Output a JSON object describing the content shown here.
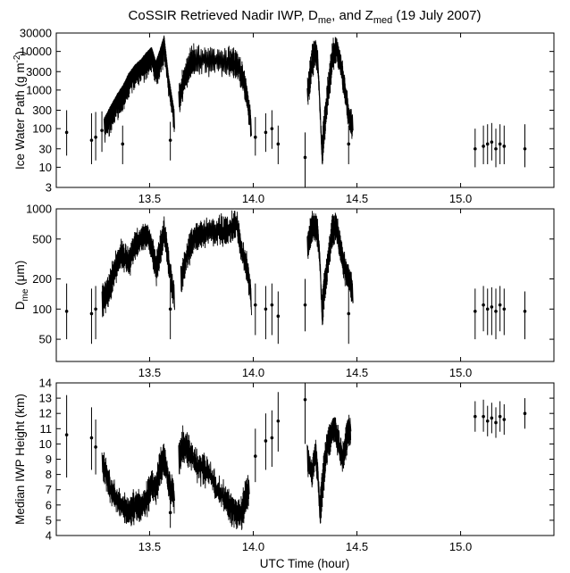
{
  "title": "CoSSIR Retrieved Nadir IWP, D",
  "title_sub1": "me",
  "title_mid": ", and Z",
  "title_sub2": "med",
  "title_end": " (19 July 2007)",
  "xlabel": "UTC Time (hour)",
  "chart_data": [
    {
      "type": "line",
      "name": "iwp",
      "ylabel": "Ice Water Path (g m",
      "ylabel_sup": "-2",
      "ylabel_end": ")",
      "yscale": "log",
      "xlim": [
        13.05,
        15.45
      ],
      "ylim": [
        3,
        30000
      ],
      "xticks": [
        "13.5",
        "14.0",
        "14.5",
        "15.0"
      ],
      "yticks": [
        "3",
        "10",
        "30",
        "100",
        "300",
        "1000",
        "3000",
        "10000",
        "30000"
      ],
      "ytick_values": [
        3,
        10,
        30,
        100,
        300,
        1000,
        3000,
        10000,
        30000
      ],
      "xticks_on": [
        13.5,
        14.0,
        14.5,
        15.0
      ],
      "points": [
        {
          "x": 13.1,
          "y": 80,
          "lo": 20,
          "hi": 300
        },
        {
          "x": 13.22,
          "y": 50,
          "lo": 12,
          "hi": 250
        },
        {
          "x": 13.24,
          "y": 60,
          "lo": 15,
          "hi": 270
        },
        {
          "x": 13.27,
          "y": 90,
          "lo": 25,
          "hi": 280
        },
        {
          "x": 13.37,
          "y": 40,
          "lo": 12,
          "hi": 120
        },
        {
          "x": 13.6,
          "y": 50,
          "lo": 15,
          "hi": 150
        },
        {
          "x": 14.01,
          "y": 60,
          "lo": 20,
          "hi": 200
        },
        {
          "x": 14.06,
          "y": 80,
          "lo": 25,
          "hi": 250
        },
        {
          "x": 14.09,
          "y": 100,
          "lo": 30,
          "hi": 300
        },
        {
          "x": 14.12,
          "y": 40,
          "lo": 12,
          "hi": 120
        },
        {
          "x": 14.25,
          "y": 18,
          "lo": 3,
          "hi": 80
        },
        {
          "x": 14.46,
          "y": 40,
          "lo": 12,
          "hi": 120
        },
        {
          "x": 15.07,
          "y": 30,
          "lo": 10,
          "hi": 100
        },
        {
          "x": 15.11,
          "y": 35,
          "lo": 12,
          "hi": 120
        },
        {
          "x": 15.13,
          "y": 40,
          "lo": 12,
          "hi": 130
        },
        {
          "x": 15.15,
          "y": 45,
          "lo": 15,
          "hi": 140
        },
        {
          "x": 15.17,
          "y": 30,
          "lo": 10,
          "hi": 100
        },
        {
          "x": 15.19,
          "y": 40,
          "lo": 12,
          "hi": 130
        },
        {
          "x": 15.21,
          "y": 35,
          "lo": 12,
          "hi": 120
        },
        {
          "x": 15.31,
          "y": 30,
          "lo": 10,
          "hi": 130
        }
      ],
      "segments": [
        [
          [
            13.28,
            100
          ],
          [
            13.31,
            200
          ],
          [
            13.34,
            400
          ],
          [
            13.37,
            700
          ],
          [
            13.4,
            1500
          ],
          [
            13.43,
            2500
          ],
          [
            13.46,
            3500
          ],
          [
            13.49,
            5500
          ],
          [
            13.51,
            7000
          ],
          [
            13.53,
            3000
          ],
          [
            13.55,
            6000
          ],
          [
            13.57,
            14000
          ],
          [
            13.59,
            1500
          ],
          [
            13.62,
            150
          ]
        ],
        [
          [
            13.64,
            500
          ],
          [
            13.66,
            1500
          ],
          [
            13.68,
            3000
          ],
          [
            13.7,
            5500
          ],
          [
            13.72,
            6000
          ],
          [
            13.8,
            6000
          ],
          [
            13.88,
            5500
          ],
          [
            13.92,
            4500
          ],
          [
            13.95,
            2000
          ],
          [
            13.97,
            600
          ],
          [
            13.99,
            100
          ]
        ],
        [
          [
            14.26,
            700
          ],
          [
            14.28,
            5000
          ],
          [
            14.3,
            10000
          ],
          [
            14.31,
            5000
          ],
          [
            14.32,
            400
          ],
          [
            14.33,
            20
          ],
          [
            14.34,
            100
          ],
          [
            14.36,
            1000
          ],
          [
            14.38,
            7000
          ],
          [
            14.4,
            12000
          ],
          [
            14.42,
            5000
          ],
          [
            14.44,
            1000
          ],
          [
            14.46,
            200
          ],
          [
            14.48,
            120
          ]
        ]
      ]
    },
    {
      "type": "line",
      "name": "dme",
      "ylabel": "D",
      "ylabel_sub": "me",
      "ylabel_end": " (μm)",
      "yscale": "log",
      "xlim": [
        13.05,
        15.45
      ],
      "ylim": [
        30,
        1000
      ],
      "xticks": [
        "13.5",
        "14.0",
        "14.5",
        "15.0"
      ],
      "yticks": [
        "50",
        "100",
        "200",
        "500",
        "1000"
      ],
      "ytick_values": [
        50,
        100,
        200,
        500,
        1000
      ],
      "xticks_on": [
        13.5,
        14.0,
        14.5,
        15.0
      ],
      "points": [
        {
          "x": 13.1,
          "y": 95,
          "lo": 50,
          "hi": 180
        },
        {
          "x": 13.22,
          "y": 90,
          "lo": 45,
          "hi": 160
        },
        {
          "x": 13.24,
          "y": 100,
          "lo": 50,
          "hi": 170
        },
        {
          "x": 13.6,
          "y": 100,
          "lo": 50,
          "hi": 200
        },
        {
          "x": 14.01,
          "y": 110,
          "lo": 55,
          "hi": 180
        },
        {
          "x": 14.06,
          "y": 100,
          "lo": 50,
          "hi": 170
        },
        {
          "x": 14.09,
          "y": 110,
          "lo": 55,
          "hi": 180
        },
        {
          "x": 14.12,
          "y": 85,
          "lo": 45,
          "hi": 150
        },
        {
          "x": 14.25,
          "y": 110,
          "lo": 60,
          "hi": 200
        },
        {
          "x": 14.46,
          "y": 90,
          "lo": 45,
          "hi": 160
        },
        {
          "x": 15.07,
          "y": 95,
          "lo": 50,
          "hi": 160
        },
        {
          "x": 15.11,
          "y": 110,
          "lo": 60,
          "hi": 170
        },
        {
          "x": 15.13,
          "y": 100,
          "lo": 55,
          "hi": 160
        },
        {
          "x": 15.15,
          "y": 105,
          "lo": 55,
          "hi": 165
        },
        {
          "x": 15.17,
          "y": 95,
          "lo": 50,
          "hi": 160
        },
        {
          "x": 15.19,
          "y": 110,
          "lo": 60,
          "hi": 170
        },
        {
          "x": 15.21,
          "y": 100,
          "lo": 55,
          "hi": 160
        },
        {
          "x": 15.31,
          "y": 95,
          "lo": 50,
          "hi": 150
        }
      ],
      "segments": [
        [
          [
            13.27,
            120
          ],
          [
            13.3,
            150
          ],
          [
            13.33,
            250
          ],
          [
            13.36,
            350
          ],
          [
            13.4,
            300
          ],
          [
            13.43,
            450
          ],
          [
            13.46,
            500
          ],
          [
            13.49,
            550
          ],
          [
            13.51,
            400
          ],
          [
            13.53,
            250
          ],
          [
            13.55,
            400
          ],
          [
            13.57,
            600
          ],
          [
            13.59,
            300
          ],
          [
            13.62,
            120
          ]
        ],
        [
          [
            13.65,
            200
          ],
          [
            13.68,
            350
          ],
          [
            13.71,
            500
          ],
          [
            13.75,
            580
          ],
          [
            13.82,
            600
          ],
          [
            13.88,
            620
          ],
          [
            13.92,
            700
          ],
          [
            13.94,
            400
          ],
          [
            13.97,
            250
          ],
          [
            13.99,
            120
          ]
        ],
        [
          [
            14.26,
            400
          ],
          [
            14.28,
            650
          ],
          [
            14.3,
            650
          ],
          [
            14.31,
            550
          ],
          [
            14.32,
            300
          ],
          [
            14.33,
            90
          ],
          [
            14.34,
            150
          ],
          [
            14.36,
            300
          ],
          [
            14.38,
            600
          ],
          [
            14.4,
            650
          ],
          [
            14.42,
            400
          ],
          [
            14.44,
            250
          ],
          [
            14.46,
            200
          ],
          [
            14.48,
            150
          ]
        ]
      ]
    },
    {
      "type": "line",
      "name": "zmed",
      "ylabel": "Median IWP Height (km)",
      "yscale": "linear",
      "xlim": [
        13.05,
        15.45
      ],
      "ylim": [
        4,
        14
      ],
      "xticks": [
        "13.5",
        "14.0",
        "14.5",
        "15.0"
      ],
      "yticks": [
        "4",
        "5",
        "6",
        "7",
        "8",
        "9",
        "10",
        "11",
        "12",
        "13",
        "14"
      ],
      "ytick_values": [
        4,
        5,
        6,
        7,
        8,
        9,
        10,
        11,
        12,
        13,
        14
      ],
      "xticks_on": [
        13.5,
        14.0,
        14.5,
        15.0
      ],
      "points": [
        {
          "x": 13.1,
          "y": 10.6,
          "lo": 7.8,
          "hi": 13.2
        },
        {
          "x": 13.22,
          "y": 10.4,
          "lo": 8.3,
          "hi": 12.4
        },
        {
          "x": 13.24,
          "y": 9.8,
          "lo": 8.0,
          "hi": 11.6
        },
        {
          "x": 13.6,
          "y": 5.5,
          "lo": 4.5,
          "hi": 7.5
        },
        {
          "x": 14.01,
          "y": 9.2,
          "lo": 7.5,
          "hi": 11.0
        },
        {
          "x": 14.06,
          "y": 10.2,
          "lo": 8.3,
          "hi": 12.0
        },
        {
          "x": 14.09,
          "y": 10.4,
          "lo": 8.5,
          "hi": 12.2
        },
        {
          "x": 14.12,
          "y": 11.5,
          "lo": 9.5,
          "hi": 13.4
        },
        {
          "x": 14.25,
          "y": 12.9,
          "lo": 10.0,
          "hi": 14.0
        },
        {
          "x": 15.07,
          "y": 11.8,
          "lo": 10.8,
          "hi": 12.8
        },
        {
          "x": 15.11,
          "y": 11.8,
          "lo": 10.8,
          "hi": 12.9
        },
        {
          "x": 15.13,
          "y": 11.5,
          "lo": 10.5,
          "hi": 12.5
        },
        {
          "x": 15.15,
          "y": 11.7,
          "lo": 10.7,
          "hi": 12.7
        },
        {
          "x": 15.17,
          "y": 11.4,
          "lo": 10.4,
          "hi": 12.4
        },
        {
          "x": 15.19,
          "y": 11.8,
          "lo": 10.8,
          "hi": 12.8
        },
        {
          "x": 15.21,
          "y": 11.6,
          "lo": 10.6,
          "hi": 12.6
        },
        {
          "x": 15.31,
          "y": 12.0,
          "lo": 11.0,
          "hi": 13.0
        }
      ],
      "segments": [
        [
          [
            13.27,
            8.8
          ],
          [
            13.3,
            7.5
          ],
          [
            13.33,
            6.5
          ],
          [
            13.36,
            6.0
          ],
          [
            13.4,
            5.5
          ],
          [
            13.43,
            6.0
          ],
          [
            13.46,
            5.8
          ],
          [
            13.49,
            6.5
          ],
          [
            13.51,
            7.5
          ],
          [
            13.53,
            7.0
          ],
          [
            13.55,
            8.5
          ],
          [
            13.57,
            9.0
          ],
          [
            13.59,
            7.5
          ],
          [
            13.62,
            6.5
          ]
        ],
        [
          [
            13.64,
            9.0
          ],
          [
            13.66,
            10.0
          ],
          [
            13.69,
            9.5
          ],
          [
            13.73,
            8.5
          ],
          [
            13.78,
            8.2
          ],
          [
            13.83,
            7.0
          ],
          [
            13.87,
            6.2
          ],
          [
            13.91,
            5.5
          ],
          [
            13.94,
            5.3
          ],
          [
            13.96,
            6.5
          ],
          [
            13.98,
            7.2
          ]
        ],
        [
          [
            14.26,
            9.0
          ],
          [
            14.28,
            8.0
          ],
          [
            14.3,
            9.5
          ],
          [
            14.31,
            8.0
          ],
          [
            14.32,
            5.5
          ],
          [
            14.33,
            7.0
          ],
          [
            14.35,
            9.5
          ],
          [
            14.37,
            10.5
          ],
          [
            14.39,
            11.0
          ],
          [
            14.41,
            10.0
          ],
          [
            14.43,
            9.0
          ],
          [
            14.45,
            10.5
          ],
          [
            14.47,
            11.0
          ]
        ]
      ]
    }
  ]
}
